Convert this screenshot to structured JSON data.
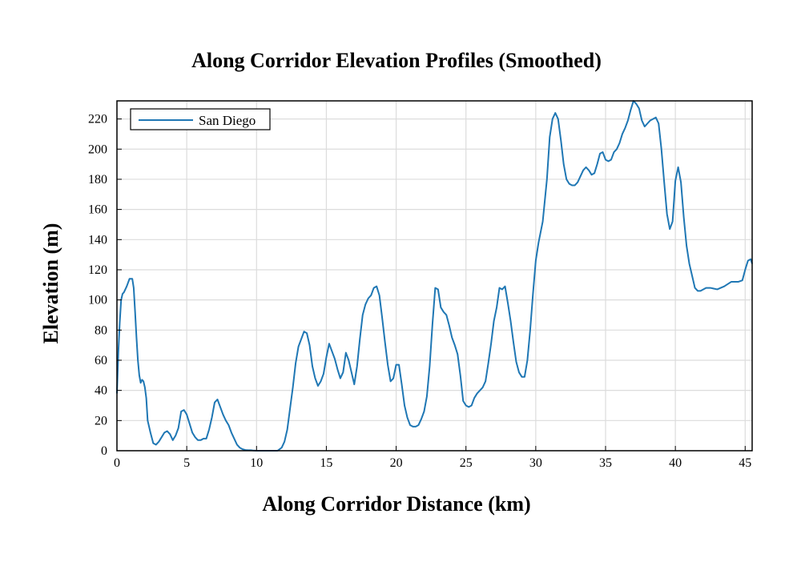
{
  "chart_data": {
    "type": "line",
    "title": "Along Corridor Elevation Profiles (Smoothed)",
    "xlabel": "Along Corridor Distance (km)",
    "ylabel": "Elevation (m)",
    "xlim": [
      0,
      45.5
    ],
    "ylim": [
      0,
      232
    ],
    "xticks": [
      0,
      5,
      10,
      15,
      20,
      25,
      30,
      35,
      40,
      45
    ],
    "yticks": [
      0,
      20,
      40,
      60,
      80,
      100,
      120,
      140,
      160,
      180,
      200,
      220
    ],
    "grid": true,
    "legend_position": "top-left",
    "series": [
      {
        "name": "San Diego",
        "color": "#1f77b4",
        "x": [
          0,
          0.1,
          0.2,
          0.3,
          0.4,
          0.5,
          0.7,
          0.9,
          1.1,
          1.2,
          1.3,
          1.4,
          1.5,
          1.6,
          1.7,
          1.8,
          1.9,
          2.0,
          2.1,
          2.2,
          2.4,
          2.6,
          2.8,
          3.0,
          3.2,
          3.4,
          3.6,
          3.8,
          4.0,
          4.2,
          4.4,
          4.6,
          4.8,
          5.0,
          5.2,
          5.4,
          5.6,
          5.8,
          6.0,
          6.2,
          6.4,
          6.6,
          6.8,
          7.0,
          7.2,
          7.4,
          7.6,
          7.8,
          8.0,
          8.2,
          8.4,
          8.6,
          8.8,
          9.0,
          9.2,
          9.4,
          9.6,
          9.8,
          10.0,
          10.5,
          11.0,
          11.5,
          11.8,
          12.0,
          12.2,
          12.4,
          12.6,
          12.8,
          13.0,
          13.2,
          13.4,
          13.6,
          13.8,
          14.0,
          14.2,
          14.4,
          14.6,
          14.8,
          15.0,
          15.2,
          15.4,
          15.6,
          15.8,
          16.0,
          16.2,
          16.4,
          16.6,
          16.8,
          17.0,
          17.2,
          17.4,
          17.6,
          17.8,
          18.0,
          18.2,
          18.4,
          18.6,
          18.8,
          19.0,
          19.2,
          19.4,
          19.6,
          19.8,
          20.0,
          20.2,
          20.4,
          20.6,
          20.8,
          21.0,
          21.2,
          21.4,
          21.6,
          21.8,
          22.0,
          22.2,
          22.4,
          22.6,
          22.8,
          23.0,
          23.2,
          23.4,
          23.6,
          23.8,
          24.0,
          24.2,
          24.4,
          24.6,
          24.8,
          25.0,
          25.2,
          25.4,
          25.6,
          25.8,
          26.0,
          26.2,
          26.4,
          26.6,
          26.8,
          27.0,
          27.2,
          27.4,
          27.6,
          27.8,
          28.0,
          28.2,
          28.4,
          28.6,
          28.8,
          29.0,
          29.2,
          29.4,
          29.6,
          29.8,
          30.0,
          30.2,
          30.5,
          30.8,
          31.0,
          31.2,
          31.4,
          31.6,
          31.8,
          32.0,
          32.2,
          32.4,
          32.6,
          32.8,
          33.0,
          33.2,
          33.4,
          33.6,
          33.8,
          34.0,
          34.2,
          34.4,
          34.6,
          34.8,
          35.0,
          35.2,
          35.4,
          35.6,
          35.8,
          36.0,
          36.2,
          36.4,
          36.6,
          36.8,
          37.0,
          37.2,
          37.4,
          37.6,
          37.8,
          38.0,
          38.2,
          38.4,
          38.6,
          38.8,
          39.0,
          39.2,
          39.4,
          39.6,
          39.8,
          40.0,
          40.2,
          40.4,
          40.6,
          40.8,
          41.0,
          41.2,
          41.4,
          41.6,
          41.8,
          42.0,
          42.2,
          42.5,
          43.0,
          43.5,
          44.0,
          44.5,
          44.8,
          45.0,
          45.2,
          45.4,
          45.5
        ],
        "y": [
          38,
          65,
          85,
          100,
          104,
          105,
          109,
          114,
          114,
          108,
          92,
          75,
          60,
          50,
          45,
          47,
          46,
          42,
          35,
          20,
          12,
          5,
          4,
          6,
          9,
          12,
          13,
          11,
          7,
          10,
          15,
          26,
          27,
          24,
          18,
          12,
          9,
          7,
          7,
          8,
          8,
          14,
          22,
          32,
          34,
          29,
          24,
          20,
          17,
          12,
          8,
          4,
          2,
          1,
          0.5,
          0.3,
          0.3,
          0.1,
          0,
          0,
          0,
          0,
          2,
          6,
          14,
          28,
          42,
          58,
          69,
          74,
          79,
          78,
          70,
          56,
          48,
          43,
          46,
          51,
          62,
          71,
          66,
          61,
          54,
          48,
          52,
          65,
          60,
          52,
          44,
          56,
          74,
          90,
          97,
          101,
          103,
          108,
          109,
          103,
          88,
          72,
          57,
          46,
          48,
          57,
          57,
          44,
          30,
          22,
          17,
          16,
          16,
          17,
          21,
          26,
          36,
          56,
          84,
          108,
          107,
          95,
          92,
          90,
          83,
          75,
          70,
          64,
          50,
          33,
          30,
          29,
          30,
          35,
          38,
          40,
          42,
          46,
          58,
          71,
          86,
          95,
          108,
          107,
          109,
          98,
          86,
          72,
          59,
          52,
          49,
          49,
          60,
          80,
          104,
          126,
          138,
          152,
          180,
          208,
          220,
          224,
          220,
          206,
          190,
          180,
          177,
          176,
          176,
          178,
          182,
          186,
          188,
          186,
          183,
          184,
          190,
          197,
          198,
          193,
          192,
          193,
          198,
          200,
          204,
          210,
          214,
          219,
          226,
          232,
          230,
          227,
          219,
          215,
          217,
          219,
          220,
          221,
          217,
          200,
          178,
          157,
          147,
          152,
          179,
          188,
          178,
          155,
          136,
          124,
          116,
          108,
          106,
          106,
          107,
          108,
          108,
          107,
          109,
          112,
          112,
          113,
          120,
          126,
          127,
          124
        ]
      }
    ]
  }
}
